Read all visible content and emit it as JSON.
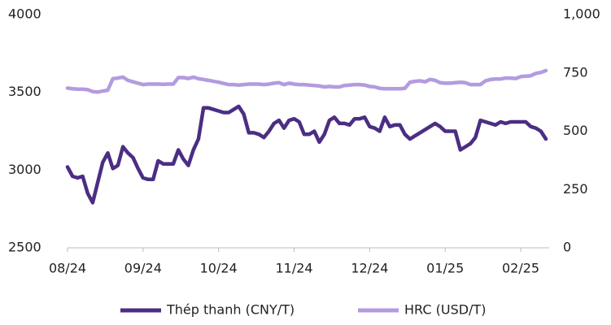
{
  "chart_data": {
    "type": "line",
    "categories": [
      "08/24",
      null,
      null,
      null,
      null,
      null,
      null,
      null,
      null,
      null,
      null,
      null,
      null,
      null,
      null,
      "09/24",
      null,
      null,
      null,
      null,
      null,
      null,
      null,
      null,
      null,
      null,
      null,
      null,
      null,
      null,
      "10/24",
      null,
      null,
      null,
      null,
      null,
      null,
      null,
      null,
      null,
      null,
      null,
      null,
      null,
      null,
      "11/24",
      null,
      null,
      null,
      null,
      null,
      null,
      null,
      null,
      null,
      null,
      null,
      null,
      null,
      null,
      "12/24",
      null,
      null,
      null,
      null,
      null,
      null,
      null,
      null,
      null,
      null,
      null,
      null,
      null,
      null,
      "01/25",
      null,
      null,
      null,
      null,
      null,
      null,
      null,
      null,
      null,
      null,
      null,
      null,
      null,
      null,
      "02/25",
      null,
      null,
      null,
      null,
      null
    ],
    "series": [
      {
        "name": "Thép thanh (CNY/T)",
        "color": "#4b2e83",
        "values": [
          3020,
          2960,
          2950,
          2960,
          2850,
          2790,
          2920,
          3050,
          3110,
          3010,
          3030,
          3150,
          3110,
          3080,
          3010,
          2950,
          2940,
          2940,
          3060,
          3040,
          3040,
          3040,
          3130,
          3070,
          3030,
          3130,
          3200,
          3400,
          3400,
          3390,
          3380,
          3370,
          3370,
          3390,
          3410,
          3360,
          3240,
          3240,
          3230,
          3210,
          3250,
          3300,
          3320,
          3270,
          3320,
          3330,
          3310,
          3230,
          3230,
          3250,
          3180,
          3230,
          3320,
          3340,
          3300,
          3300,
          3290,
          3330,
          3330,
          3340,
          3280,
          3270,
          3250,
          3340,
          3280,
          3290,
          3290,
          3230,
          3200,
          3220,
          3240,
          3260,
          3280,
          3300,
          3280,
          3250,
          3250,
          3250,
          3130,
          3150,
          3170,
          3210,
          3320,
          3310,
          3300,
          3290,
          3310,
          3300,
          3310,
          3310,
          3310,
          3310,
          3280,
          3270,
          3250,
          3200
        ]
      },
      {
        "name": "HRC (USD/T)",
        "color": "#b49be0",
        "axis": "y2",
        "values": [
          685,
          682,
          680,
          680,
          678,
          670,
          668,
          672,
          676,
          725,
          728,
          732,
          718,
          712,
          706,
          700,
          702,
          702,
          702,
          701,
          702,
          702,
          730,
          730,
          726,
          732,
          725,
          722,
          718,
          714,
          710,
          705,
          700,
          700,
          698,
          700,
          702,
          702,
          702,
          700,
          702,
          706,
          708,
          700,
          706,
          702,
          700,
          700,
          698,
          696,
          694,
          690,
          692,
          690,
          690,
          696,
          698,
          700,
          700,
          698,
          692,
          690,
          684,
          682,
          682,
          682,
          682,
          684,
          710,
          714,
          716,
          712,
          722,
          718,
          708,
          706,
          706,
          708,
          710,
          708,
          700,
          700,
          700,
          716,
          722,
          724,
          724,
          728,
          728,
          726,
          734,
          736,
          738,
          748,
          752,
          760
        ]
      }
    ],
    "ylim": [
      2500,
      4000
    ],
    "yticks": [
      2500,
      3000,
      3500,
      4000
    ],
    "y2lim": [
      0,
      1000
    ],
    "y2ticks": [
      0,
      250,
      500,
      750,
      {
        "value": 1000,
        "label": "1,000"
      }
    ],
    "legend": "bottom"
  }
}
